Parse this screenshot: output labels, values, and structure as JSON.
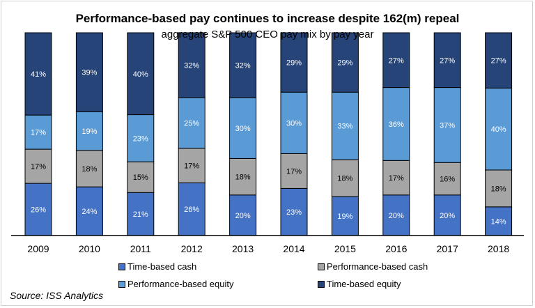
{
  "chart_data": {
    "type": "bar",
    "stacked": true,
    "title": "Performance-based pay continues to increase despite 162(m) repeal",
    "subtitle": "aggregate S&P 500 CEO pay mix by pay year",
    "categories": [
      "2009",
      "2010",
      "2011",
      "2012",
      "2013",
      "2014",
      "2015",
      "2016",
      "2017",
      "2018"
    ],
    "series": [
      {
        "name": "Time-based cash",
        "color": "#4472C4",
        "values": [
          26,
          24,
          21,
          26,
          20,
          23,
          19,
          20,
          20,
          14
        ]
      },
      {
        "name": "Performance-based cash",
        "color": "#A5A5A5",
        "values": [
          17,
          18,
          15,
          17,
          18,
          17,
          18,
          17,
          16,
          18
        ]
      },
      {
        "name": "Performance-based equity",
        "color": "#5B9BD5",
        "values": [
          17,
          19,
          23,
          25,
          30,
          30,
          33,
          36,
          37,
          40
        ]
      },
      {
        "name": "Time-based equity",
        "color": "#264478",
        "values": [
          41,
          39,
          40,
          32,
          32,
          29,
          29,
          27,
          27,
          27
        ]
      }
    ],
    "value_suffix": "%",
    "ylim": [
      0,
      100
    ],
    "grid": false,
    "legend_position": "bottom",
    "source": "Source: ISS Analytics"
  }
}
